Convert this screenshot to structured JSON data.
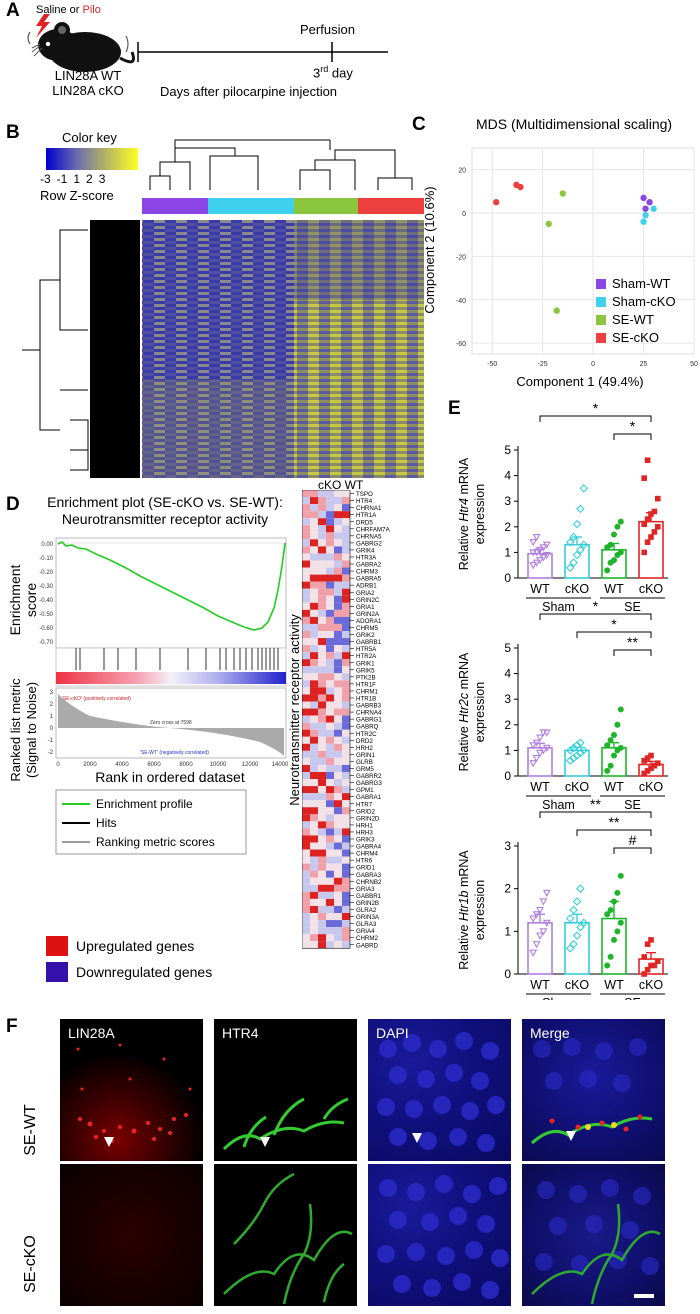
{
  "panel_labels": {
    "a": "A",
    "b": "B",
    "c": "C",
    "d": "D",
    "e": "E",
    "f": "F"
  },
  "panelA": {
    "treatment_prefix": "Saline or ",
    "treatment_pilo": "Pilo",
    "genotype_wt": "LIN28A WT",
    "genotype_cko": "LIN28A cKO",
    "endpoint": "Perfusion",
    "day": "3",
    "day_suffix": "rd",
    "day_word": "day",
    "timeline_label": "Days after pilocarpine injection"
  },
  "panelB": {
    "color_key_title": "Color key",
    "scale_ticks": [
      "-3",
      "-1",
      "1",
      "2",
      "3"
    ],
    "scale_label": "Row Z-score",
    "group_colors": [
      "#8b45e6",
      "#3fd0ee",
      "#8cc63f",
      "#ee3f3f"
    ]
  },
  "panelC": {
    "title": "MDS (Multidimensional scaling)",
    "legend": [
      {
        "name": "Sham-WT",
        "color": "#8b45e6"
      },
      {
        "name": "Sham-cKO",
        "color": "#3fd0ee"
      },
      {
        "name": "SE-WT",
        "color": "#8cc63f"
      },
      {
        "name": "SE-cKO",
        "color": "#ee3f3f"
      }
    ]
  },
  "panelD": {
    "title_line1": "Enrichment plot (SE-cKO vs. SE-WT):",
    "title_line2": "Neurotransmitter receptor activity",
    "es_label_line1": "Enrichment",
    "es_label_line2": "score",
    "rank_label_line1": "Ranked list metric",
    "rank_label_line2": "(Signal to Noise)",
    "xlabel": "Rank in ordered dataset",
    "es_ticks": [
      "0.00",
      "-0.10",
      "-0.20",
      "-0.30",
      "-0.40",
      "-0.50",
      "-0.60",
      "-0.70"
    ],
    "rank_ticks": [
      "3",
      "2",
      "1",
      "0",
      "-1",
      "-2"
    ],
    "x_ticks": [
      "0",
      "2000",
      "4000",
      "6000",
      "8000",
      "10000",
      "12000",
      "14000"
    ],
    "pos_corr": "'SE-cKO' (positively correlated)",
    "neg_corr": "'SE-WT' (negatively correlated)",
    "zero_cross": "Zero cross at 7598",
    "legend": [
      "Enrichment profile",
      "Hits",
      "Ranking metric scores"
    ],
    "legend_colors": [
      "#22cc22",
      "#000000",
      "#999999"
    ],
    "up_label": "Upregulated genes",
    "down_label": "Downregulated genes",
    "up_color": "#dd1111",
    "down_color": "#3311aa",
    "heatmap_header": "cKO WT",
    "heatmap_axis": "Neurotransmitter receptor activity",
    "genes": [
      "TSPO",
      "HTR4",
      "CHRNA1",
      "HTR1A",
      "DRD5",
      "CHRFAM7A",
      "CHRNA5",
      "GABRG2",
      "GRIK4",
      "HTR3A",
      "GABRA2",
      "CHRM3",
      "GABRA5",
      "ADRB1",
      "GRIA2",
      "GRIN2C",
      "GRIA1",
      "GRIN2A",
      "ADORA1",
      "CHRM5",
      "GRIK2",
      "GABRB1",
      "HTR5A",
      "HTR2A",
      "GRIK1",
      "GRIK5",
      "PTK2B",
      "HTR1F",
      "CHRM1",
      "HTR1B",
      "GABRB3",
      "CHRNA4",
      "GABRG1",
      "GABRQ",
      "HTR2C",
      "DRD2",
      "HRH2",
      "GRIN1",
      "GLRB",
      "GRM5",
      "GABRR2",
      "GABRG3",
      "GPM1",
      "GABRA1",
      "HTR7",
      "GRID2",
      "GRIN2D",
      "HRH1",
      "HRH3",
      "GRIK3",
      "GABRA4",
      "CHRM4",
      "HTR6",
      "GRID1",
      "GABRA3",
      "CHRNB2",
      "GRIA3",
      "GABBR1",
      "GRIN2B",
      "GLRA2",
      "GRIN3A",
      "GLRA3",
      "GRIA4",
      "CHRM2",
      "GABRD"
    ]
  },
  "panelE": {
    "xcats": [
      "WT",
      "cKO",
      "WT",
      "cKO"
    ],
    "groups": [
      "Sham",
      "SE"
    ],
    "y_ticks": [
      "0",
      "1",
      "2",
      "3",
      "4",
      "5"
    ],
    "colors": [
      "#b07fe0",
      "#36cfd8",
      "#1fb52a",
      "#e02525"
    ],
    "plots": [
      {
        "gene": "Htr4",
        "label_pre": "Relative ",
        "label_post": " mRNA",
        "label_line2": "expression",
        "sig": [
          "*",
          "*"
        ]
      },
      {
        "gene": "Htr2c",
        "label_pre": "Relative ",
        "label_post": " mRNA",
        "label_line2": "expression",
        "sig": [
          "*",
          "*",
          "**"
        ]
      },
      {
        "gene": "Htr1b",
        "label_pre": "Relative ",
        "label_post": " mRNA",
        "label_line2": "expression",
        "sig": [
          "**",
          "**",
          "#"
        ]
      }
    ]
  },
  "panelF": {
    "columns": [
      "LIN28A",
      "HTR4",
      "DAPI",
      "Merge"
    ],
    "rows": [
      "SE-WT",
      "SE-cKO"
    ]
  },
  "chart_data": [
    {
      "type": "scatter",
      "title": "MDS (Multidimensional scaling)",
      "xlabel": "Component 1 (49.4%)",
      "ylabel": "Component 2 (10.6%)",
      "xlim": [
        -60,
        50
      ],
      "ylim": [
        -65,
        30
      ],
      "xticks": [
        -50,
        -25,
        0,
        25,
        50
      ],
      "yticks": [
        -60,
        -40,
        -20,
        0,
        20
      ],
      "grid": true,
      "legend_position": "bottom-right",
      "series": [
        {
          "name": "Sham-WT",
          "color": "#8b45e6",
          "x": [
            25,
            28,
            26
          ],
          "y": [
            7,
            5,
            2
          ]
        },
        {
          "name": "Sham-cKO",
          "color": "#3fd0ee",
          "x": [
            30,
            26,
            25
          ],
          "y": [
            2,
            -1,
            -4
          ]
        },
        {
          "name": "SE-WT",
          "color": "#8cc63f",
          "x": [
            -15,
            -22,
            -18
          ],
          "y": [
            9,
            -5,
            -45
          ]
        },
        {
          "name": "SE-cKO",
          "color": "#ee3f3f",
          "x": [
            -48,
            -38,
            -36
          ],
          "y": [
            5,
            13,
            12
          ]
        }
      ]
    },
    {
      "type": "bar",
      "ylabel": "Relative Htr4 mRNA expression",
      "categories": [
        "WT",
        "cKO",
        "WT",
        "cKO"
      ],
      "groups": [
        "Sham",
        "SE"
      ],
      "ylim": [
        0,
        5
      ],
      "yticks": [
        0,
        1,
        2,
        3,
        4,
        5
      ],
      "values": [
        0.95,
        1.3,
        1.1,
        2.2
      ],
      "errors": [
        0.18,
        0.3,
        0.25,
        0.35
      ],
      "points": [
        [
          0.5,
          0.6,
          0.7,
          0.8,
          0.9,
          1.0,
          1.0,
          1.1,
          1.2,
          1.3,
          1.4,
          1.6
        ],
        [
          0.4,
          0.6,
          0.9,
          1.1,
          1.3,
          1.4,
          1.6,
          2.1,
          2.7,
          3.5
        ],
        [
          0.3,
          0.6,
          0.7,
          0.9,
          1.0,
          1.2,
          1.3,
          1.7,
          2.0,
          2.2
        ],
        [
          1.0,
          1.4,
          1.6,
          1.8,
          2.0,
          2.1,
          2.3,
          2.5,
          2.6,
          3.1,
          3.9,
          4.6
        ]
      ],
      "significance": [
        {
          "between": [
            0,
            3
          ],
          "label": "*"
        },
        {
          "between": [
            2,
            3
          ],
          "label": "*"
        }
      ]
    },
    {
      "type": "bar",
      "ylabel": "Relative Htr2c mRNA expression",
      "categories": [
        "WT",
        "cKO",
        "WT",
        "cKO"
      ],
      "groups": [
        "Sham",
        "SE"
      ],
      "ylim": [
        0,
        5
      ],
      "yticks": [
        0,
        1,
        2,
        3,
        4,
        5
      ],
      "values": [
        1.1,
        1.0,
        1.1,
        0.45
      ],
      "errors": [
        0.18,
        0.12,
        0.2,
        0.12
      ],
      "points": [
        [
          0.5,
          0.7,
          0.9,
          1.0,
          1.1,
          1.2,
          1.3,
          1.5,
          1.7,
          1.7
        ],
        [
          0.6,
          0.7,
          0.8,
          0.9,
          1.0,
          1.0,
          1.1,
          1.2,
          1.3
        ],
        [
          0.2,
          0.4,
          0.8,
          1.0,
          1.1,
          1.2,
          1.4,
          1.6,
          2.0,
          2.6
        ],
        [
          0.1,
          0.2,
          0.3,
          0.4,
          0.5,
          0.6,
          0.7,
          0.8
        ]
      ],
      "significance": [
        {
          "between": [
            0,
            3
          ],
          "label": "*"
        },
        {
          "between": [
            1,
            3
          ],
          "label": "*"
        },
        {
          "between": [
            2,
            3
          ],
          "label": "**"
        }
      ]
    },
    {
      "type": "bar",
      "ylabel": "Relative Htr1b mRNA expression",
      "categories": [
        "WT",
        "cKO",
        "WT",
        "cKO"
      ],
      "groups": [
        "Sham",
        "SE"
      ],
      "ylim": [
        0,
        3
      ],
      "yticks": [
        0,
        1,
        2,
        3
      ],
      "values": [
        1.2,
        1.2,
        1.3,
        0.35
      ],
      "errors": [
        0.2,
        0.2,
        0.4,
        0.15
      ],
      "points": [
        [
          0.5,
          0.7,
          0.9,
          1.0,
          1.2,
          1.3,
          1.4,
          1.5,
          1.7,
          1.9
        ],
        [
          0.6,
          0.7,
          0.9,
          1.1,
          1.2,
          1.3,
          1.5,
          1.7,
          2.0
        ],
        [
          0.2,
          0.4,
          0.8,
          1.0,
          1.2,
          1.4,
          1.5,
          1.7,
          1.9,
          2.3
        ],
        [
          0.0,
          0.1,
          0.2,
          0.2,
          0.3,
          0.4,
          0.7,
          0.8
        ]
      ],
      "significance": [
        {
          "between": [
            0,
            3
          ],
          "label": "**"
        },
        {
          "between": [
            1,
            3
          ],
          "label": "**"
        },
        {
          "between": [
            2,
            3
          ],
          "label": "#"
        }
      ]
    }
  ]
}
